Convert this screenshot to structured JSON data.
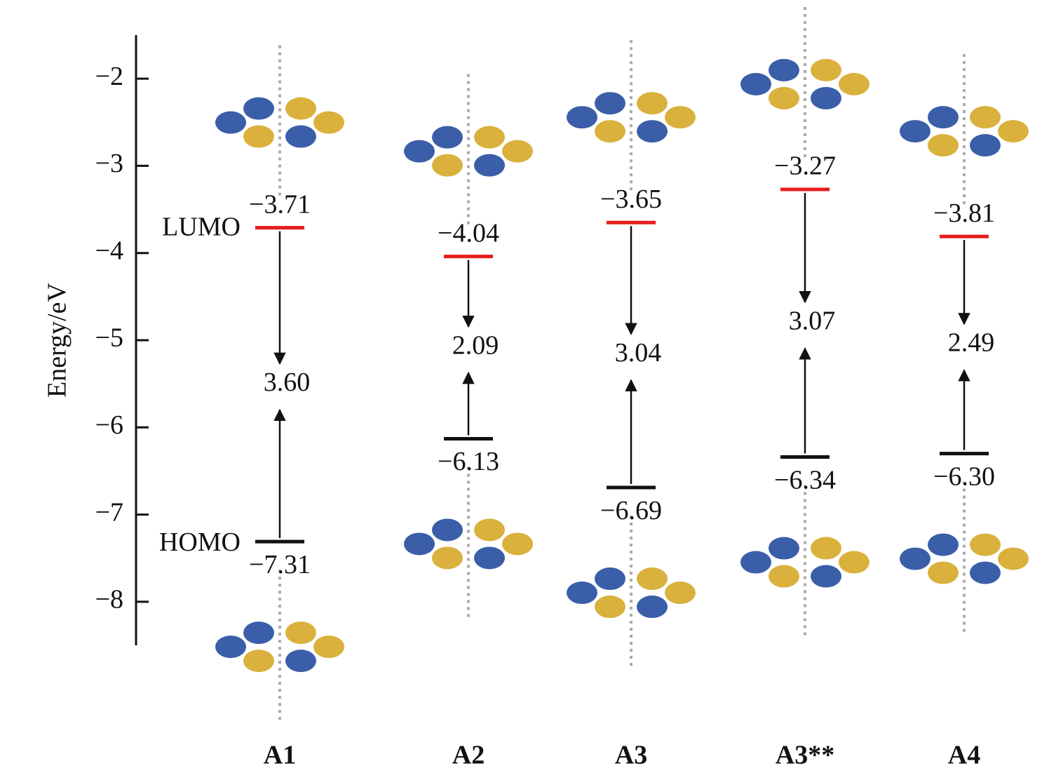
{
  "chart_data": {
    "type": "energy-levels",
    "y_label": "Energy/eV",
    "categories": [
      "A1",
      "A2",
      "A3",
      "A3**",
      "A4"
    ],
    "series": [
      {
        "name": "LUMO",
        "color": "#e81c1c",
        "values": [
          -3.71,
          -4.04,
          -3.65,
          -3.27,
          -3.81
        ],
        "value_labels": [
          "−3.71",
          "−4.04",
          "−3.65",
          "−3.27",
          "−3.81"
        ]
      },
      {
        "name": "HOMO",
        "color": "#111111",
        "values": [
          -7.31,
          -6.13,
          -6.69,
          -6.34,
          -6.3
        ],
        "value_labels": [
          "−7.31",
          "−6.13",
          "−6.69",
          "−6.34",
          "−6.30"
        ]
      }
    ],
    "band_gap": {
      "values": [
        3.6,
        2.09,
        3.04,
        3.07,
        2.49
      ],
      "value_labels": [
        "3.60",
        "2.09",
        "3.04",
        "3.07",
        "2.49"
      ]
    },
    "ylim": [
      -8.5,
      -1.5
    ],
    "yticks": [
      {
        "value": -2,
        "label": "−2"
      },
      {
        "value": -3,
        "label": "−3"
      },
      {
        "value": -4,
        "label": "−4"
      },
      {
        "value": -5,
        "label": "−5"
      },
      {
        "value": -6,
        "label": "−6"
      },
      {
        "value": -7,
        "label": "−7"
      },
      {
        "value": -8,
        "label": "−8"
      }
    ]
  }
}
